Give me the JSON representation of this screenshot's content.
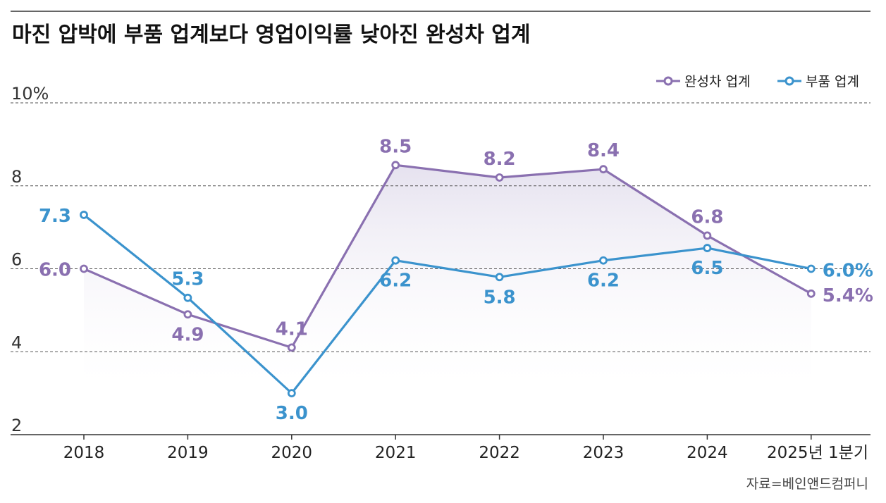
{
  "chart_data": {
    "type": "line",
    "title": "마진 압박에 부품 업계보다 영업이익률 낮아진 완성차 업계",
    "categories": [
      "2018",
      "2019",
      "2020",
      "2021",
      "2022",
      "2023",
      "2024",
      "2025년 1분기"
    ],
    "series": [
      {
        "name": "완성차 업계",
        "color": "#8a70b0",
        "values": [
          6.0,
          4.9,
          4.1,
          8.5,
          8.2,
          8.4,
          6.8,
          5.4
        ],
        "labels": [
          "6.0",
          "4.9",
          "4.1",
          "8.5",
          "8.2",
          "8.4",
          "6.8",
          "5.4%"
        ]
      },
      {
        "name": "부품 업계",
        "color": "#3b93cd",
        "values": [
          7.3,
          5.3,
          3.0,
          6.2,
          5.8,
          6.2,
          6.5,
          6.0
        ],
        "labels": [
          "7.3",
          "5.3",
          "3.0",
          "6.2",
          "5.8",
          "6.2",
          "6.5",
          "6.0%"
        ]
      }
    ],
    "y_ticks": [
      "2",
      "4",
      "6",
      "8",
      "10%"
    ],
    "ylim": [
      2,
      10
    ],
    "grid": true,
    "legend": "top-right",
    "source": "자료=베인앤드컴퍼니"
  }
}
